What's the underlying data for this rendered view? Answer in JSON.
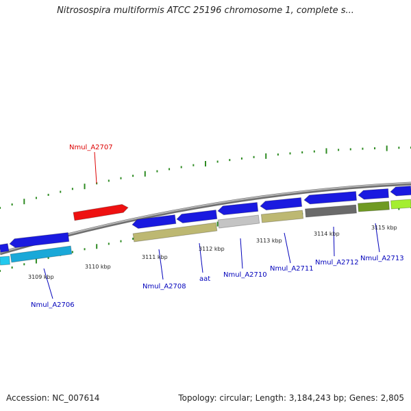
{
  "title": "Nitrosospira multiformis ATCC 25196 chromosome 1, complete s...",
  "footer": {
    "accession_label": "Accession:",
    "accession": "NC_007614",
    "topology_text": "Topology: circular; Length: 3,184,243 bp; Genes: 2,805"
  },
  "colors": {
    "backbone": "#8a8a8a",
    "tick": "#2e8b22",
    "label_blue": "#0000bb",
    "label_red": "#dd0000",
    "gene_blue": "#1a1ae0",
    "gene_red": "#ee1111",
    "gene_cyan": "#22c8ee",
    "gene_khaki": "#bdb872",
    "gene_gray": "#c4c4c4",
    "gene_dark": "#6a6a6a",
    "gene_olive": "#6f9a22",
    "gene_lime": "#a4ee30"
  },
  "kbp_labels": [
    "3109 kbp",
    "3110 kbp",
    "3111 kbp",
    "3112 kbp",
    "3113 kbp",
    "3114 kbp",
    "3115 kbp"
  ],
  "gene_labels": [
    "Nmul_A2707",
    "Nmul_A2706",
    "Nmul_A2708",
    "aat",
    "Nmul_A2710",
    "Nmul_A2711",
    "Nmul_A2712",
    "Nmul_A2713"
  ]
}
